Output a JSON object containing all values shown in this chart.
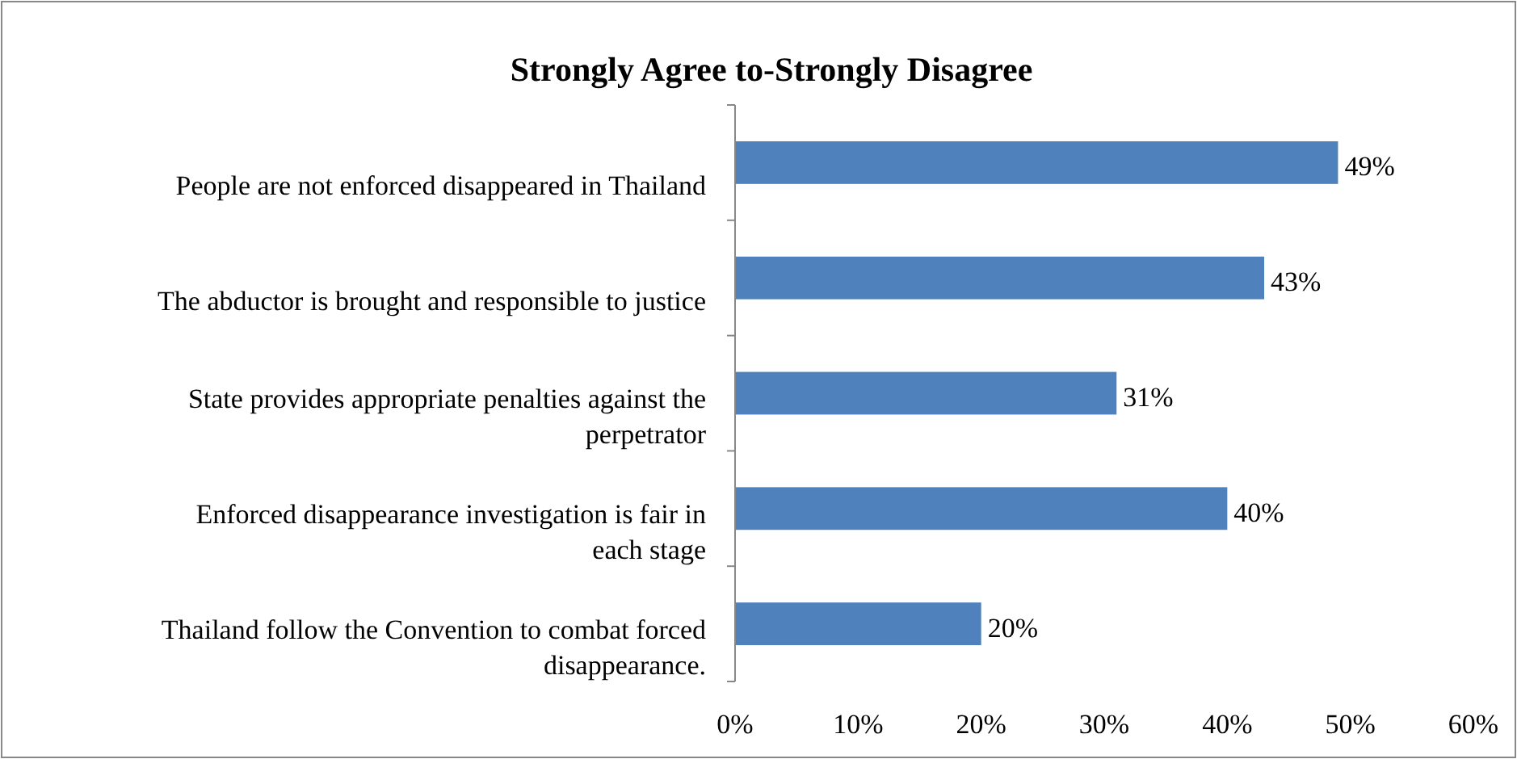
{
  "chart_data": {
    "type": "bar",
    "orientation": "horizontal",
    "title": "Strongly Agree to-Strongly Disagree",
    "categories": [
      "People are not enforced disappeared in Thailand",
      "The abductor is brought and responsible to justice",
      "State provides appropriate penalties against the perpetrator",
      "Enforced disappearance investigation is fair in each stage",
      "Thailand follow the Convention to combat forced disappearance."
    ],
    "values": [
      49,
      43,
      31,
      40,
      20
    ],
    "value_labels": [
      "49%",
      "43%",
      "31%",
      "40%",
      "20%"
    ],
    "color": "#4f81bd",
    "xlim": [
      0,
      60
    ],
    "xticks": [
      {
        "value": 0,
        "label": "0%"
      },
      {
        "value": 10,
        "label": "10%"
      },
      {
        "value": 20,
        "label": "20%"
      },
      {
        "value": 30,
        "label": "30%"
      },
      {
        "value": 40,
        "label": "40%"
      },
      {
        "value": 50,
        "label": "50%"
      },
      {
        "value": 60,
        "label": "60%"
      }
    ],
    "grid": false
  }
}
